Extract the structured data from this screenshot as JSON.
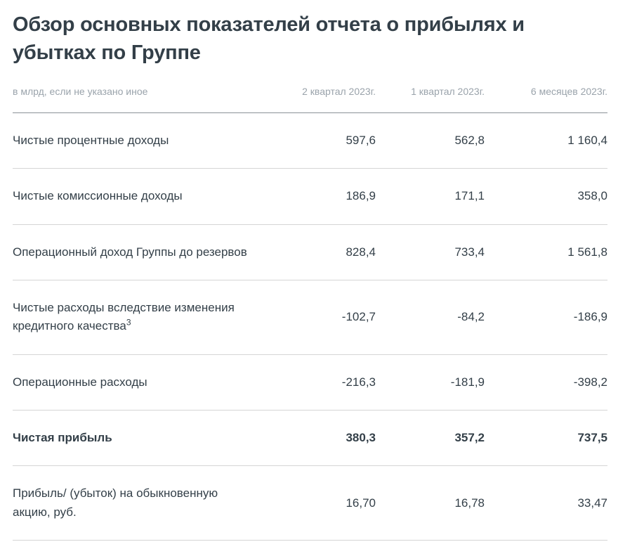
{
  "page": {
    "title": "Обзор основных показателей отчета о прибылях и убытках по Группе"
  },
  "table": {
    "unit_note": "в млрд, если не указано иное",
    "columns": [
      "2 квартал 2023г.",
      "1 квартал 2023г.",
      "6 месяцев 2023г."
    ],
    "rows": [
      {
        "label": "Чистые процентные доходы",
        "values": [
          "597,6",
          "562,8",
          "1 160,4"
        ]
      },
      {
        "label": "Чистые комиссионные доходы",
        "values": [
          "186,9",
          "171,1",
          "358,0"
        ]
      },
      {
        "label": "Операционный доход Группы до резервов",
        "values": [
          "828,4",
          "733,4",
          "1 561,8"
        ]
      },
      {
        "label": "Чистые расходы вследствие изменения кредитного качества",
        "footnote": "3",
        "values": [
          "-102,7",
          "-84,2",
          "-186,9"
        ]
      },
      {
        "label": "Операционные расходы",
        "values": [
          "-216,3",
          "-181,9",
          "-398,2"
        ]
      },
      {
        "label": "Чистая прибыль",
        "values": [
          "380,3",
          "357,2",
          "737,5"
        ],
        "bold": true
      },
      {
        "label": "Прибыль/ (убыток) на обыкновенную акцию, руб.",
        "values": [
          "16,70",
          "16,78",
          "33,47"
        ]
      }
    ]
  }
}
